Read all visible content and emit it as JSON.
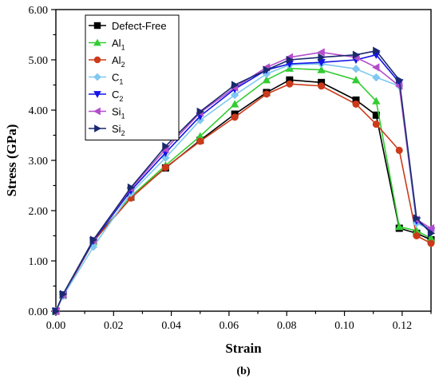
{
  "chart_data": {
    "type": "line",
    "xlabel": "Strain",
    "ylabel": "Stress (GPa)",
    "caption": "(b)",
    "xlim": [
      0.0,
      0.13
    ],
    "ylim": [
      0.0,
      6.0
    ],
    "x_ticks": [
      "0.00",
      "0.02",
      "0.04",
      "0.06",
      "0.08",
      "0.10",
      "0.12"
    ],
    "y_ticks": [
      "0.00",
      "1.00",
      "2.00",
      "3.00",
      "4.00",
      "5.00",
      "6.00"
    ],
    "legend_position": "top-left",
    "grid": false,
    "x": [
      0,
      0.0025,
      0.013,
      0.026,
      0.038,
      0.05,
      0.062,
      0.073,
      0.081,
      0.092,
      0.104,
      0.111,
      0.119,
      0.125,
      0.13
    ],
    "series": [
      {
        "name": "Defect-Free",
        "base": "Defect-Free",
        "sub": "",
        "color": "#000000",
        "marker": "square",
        "values": [
          0,
          0.32,
          1.4,
          2.27,
          2.85,
          3.4,
          3.92,
          4.35,
          4.6,
          4.55,
          4.2,
          3.9,
          1.65,
          1.55,
          1.42
        ]
      },
      {
        "name": "Al1",
        "base": "Al",
        "sub": "1",
        "color": "#33cc33",
        "marker": "triangle-up",
        "values": [
          0,
          0.32,
          1.38,
          2.28,
          2.9,
          3.48,
          4.12,
          4.6,
          4.83,
          4.8,
          4.6,
          4.18,
          1.68,
          1.6,
          1.45
        ]
      },
      {
        "name": "Al2",
        "base": "Al",
        "sub": "2",
        "color": "#cc3a1a",
        "marker": "circle",
        "values": [
          0,
          0.31,
          1.39,
          2.25,
          2.86,
          3.38,
          3.86,
          4.32,
          4.52,
          4.48,
          4.12,
          3.72,
          3.2,
          1.5,
          1.35
        ]
      },
      {
        "name": "C1",
        "base": "C",
        "sub": "1",
        "color": "#7fc8f0",
        "marker": "diamond",
        "values": [
          0,
          0.3,
          1.28,
          2.35,
          3.05,
          3.8,
          4.3,
          4.72,
          4.9,
          4.92,
          4.82,
          4.65,
          4.48,
          1.75,
          1.62
        ]
      },
      {
        "name": "C2",
        "base": "C",
        "sub": "2",
        "color": "#1414e6",
        "marker": "triangle-down",
        "values": [
          0,
          0.33,
          1.4,
          2.4,
          3.15,
          3.88,
          4.42,
          4.8,
          4.92,
          4.95,
          5.0,
          5.1,
          4.55,
          1.8,
          1.6
        ]
      },
      {
        "name": "Si1",
        "base": "Si",
        "sub": "1",
        "color": "#b34dcc",
        "marker": "triangle-left",
        "values": [
          0,
          0.33,
          1.42,
          2.44,
          3.22,
          3.95,
          4.45,
          4.85,
          5.05,
          5.15,
          5.05,
          4.85,
          4.48,
          1.82,
          1.65
        ]
      },
      {
        "name": "Si2",
        "base": "Si",
        "sub": "2",
        "color": "#1a2a6e",
        "marker": "triangle-right",
        "values": [
          0,
          0.34,
          1.42,
          2.46,
          3.28,
          3.97,
          4.5,
          4.8,
          5.0,
          5.05,
          5.1,
          5.18,
          4.6,
          1.85,
          1.55
        ]
      }
    ]
  }
}
